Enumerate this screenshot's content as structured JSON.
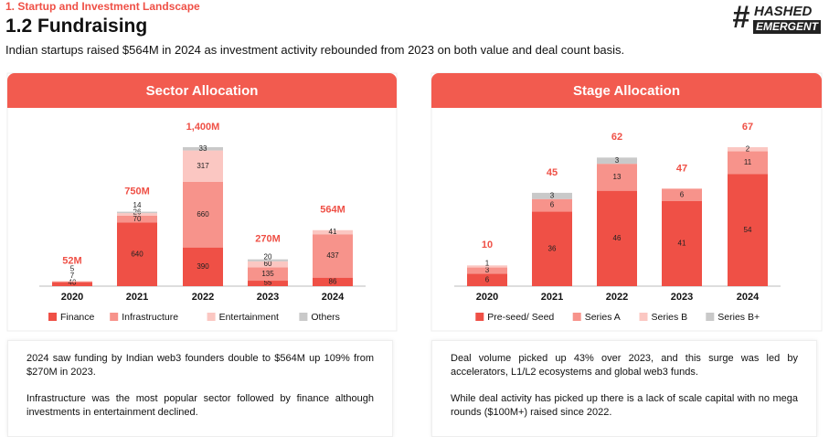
{
  "header": {
    "section": "1. Startup and Investment Landscape",
    "title": "1.2 Fundraising",
    "subtitle": "Indian startups raised $564M in 2024 as investment activity rebounded from 2023 on both value and deal count basis.",
    "logo": {
      "mark": "#",
      "line1": "HASHED",
      "line2": "EMERGENT"
    }
  },
  "chart_data": [
    {
      "type": "bar",
      "stacked": true,
      "title": "Sector Allocation",
      "categories": [
        "2020",
        "2021",
        "2022",
        "2023",
        "2024"
      ],
      "series": [
        {
          "name": "Finance",
          "color": "#ef5046",
          "values": [
            40,
            640,
            390,
            55,
            86
          ]
        },
        {
          "name": "Infrastructure",
          "color": "#f7938b",
          "values": [
            7,
            70,
            660,
            135,
            437
          ]
        },
        {
          "name": "Entertainment",
          "color": "#fbc7c2",
          "values": [
            5,
            26,
            317,
            60,
            41
          ]
        },
        {
          "name": "Others",
          "color": "#c9c9c9",
          "values": [
            null,
            14,
            33,
            20,
            null
          ]
        }
      ],
      "totals": {
        "values": [
          52,
          750,
          1400,
          270,
          564
        ],
        "value_labels": [
          "52M",
          "750M",
          "1,400M",
          "270M",
          "564M"
        ]
      }
    },
    {
      "type": "bar",
      "stacked": true,
      "title": "Stage Allocation",
      "categories": [
        "2020",
        "2021",
        "2022",
        "2023",
        "2024"
      ],
      "series": [
        {
          "name": "Pre-seed/ Seed",
          "color": "#ef5046",
          "values": [
            6,
            36,
            46,
            41,
            54
          ]
        },
        {
          "name": "Series A",
          "color": "#f7938b",
          "values": [
            3,
            6,
            13,
            6,
            11
          ]
        },
        {
          "name": "Series B",
          "color": "#fbc7c2",
          "values": [
            1,
            null,
            null,
            null,
            2
          ]
        },
        {
          "name": "Series B+",
          "color": "#c9c9c9",
          "values": [
            null,
            3,
            3,
            null,
            null
          ]
        }
      ],
      "totals": {
        "values": [
          10,
          45,
          62,
          47,
          67
        ],
        "value_labels": [
          "10",
          "45",
          "62",
          "47",
          "67"
        ]
      }
    }
  ],
  "notes": [
    [
      "2024 saw funding by Indian web3 founders double to $564M up 109% from $270M in 2023.",
      "Infrastructure was the most popular sector followed by finance although investments in entertainment declined."
    ],
    [
      "Deal volume picked up 43% over 2023, and this surge was led by accelerators, L1/L2 ecosystems and global web3 funds.",
      "While deal activity has picked up there is a lack of scale capital with no mega rounds ($100M+) raised since 2022."
    ]
  ]
}
